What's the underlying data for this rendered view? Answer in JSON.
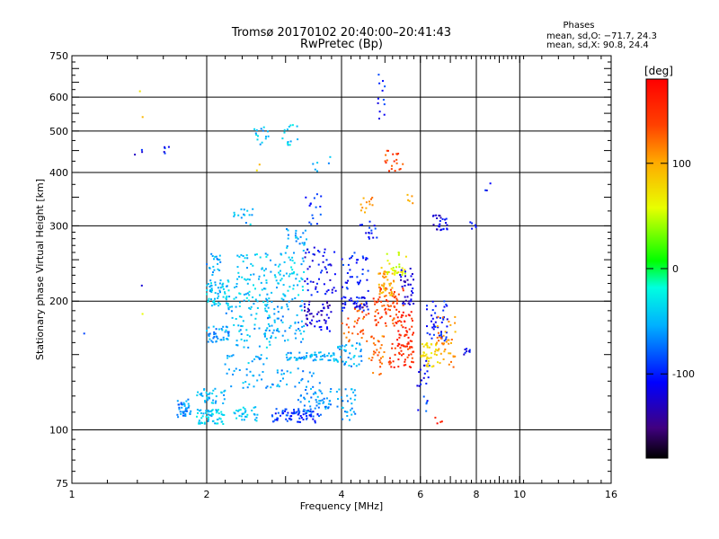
{
  "chart_data": {
    "type": "scatter",
    "title": "Tromsø 20170102 20:40:00–20:41:43",
    "subtitle": "RwPretec (Bp)",
    "xlabel": "Frequency [MHz]",
    "ylabel": "Stationary phase Virtual Height [km]",
    "xscale": "log",
    "yscale": "log",
    "xlim": [
      1,
      16
    ],
    "ylim": [
      75,
      750
    ],
    "x_ticks": [
      1,
      2,
      4,
      6,
      8,
      10,
      16
    ],
    "x_tick_labels": [
      "1",
      "2",
      "4",
      "6",
      "8",
      "10",
      "16"
    ],
    "y_ticks": [
      75,
      100,
      200,
      300,
      400,
      500,
      600,
      750
    ],
    "y_tick_labels": [
      "75",
      "100",
      "200",
      "300",
      "400",
      "500",
      "600",
      "750"
    ],
    "grid": true,
    "phase_stats": {
      "heading": "Phases",
      "line_o": "mean, sd,O: −71.7, 24.3",
      "line_x": "mean, sd,X:  90.8, 24.4"
    },
    "colorbar": {
      "label": "[deg]",
      "min": -180,
      "max": 180,
      "ticks": [
        100,
        0,
        -100
      ],
      "tick_labels": [
        "100",
        "0",
        "-100"
      ],
      "colormap": "rainbow"
    },
    "clusters": [
      {
        "fx": [
          1.05,
          1.22
        ],
        "h": [
          168,
          168
        ],
        "ph": -105,
        "n": 1
      },
      {
        "fx": [
          1.38,
          1.45
        ],
        "h": [
          440,
          460
        ],
        "ph": -110,
        "n": 3
      },
      {
        "fx": [
          1.6,
          1.65
        ],
        "h": [
          440,
          460
        ],
        "ph": -105,
        "n": 5
      },
      {
        "fx": [
          1.42,
          1.44
        ],
        "h": [
          215,
          220
        ],
        "ph": -110,
        "n": 1
      },
      {
        "fx": [
          1.42,
          1.44
        ],
        "h": [
          185,
          190
        ],
        "ph": 40,
        "n": 1
      },
      {
        "fx": [
          1.4,
          1.42
        ],
        "h": [
          610,
          620
        ],
        "ph": 90,
        "n": 1
      },
      {
        "fx": [
          1.42,
          1.44
        ],
        "h": [
          530,
          540
        ],
        "ph": 100,
        "n": 1
      },
      {
        "fx": [
          1.72,
          1.85
        ],
        "h": [
          107,
          118
        ],
        "ph": -65,
        "n": 40
      },
      {
        "fx": [
          1.9,
          2.2
        ],
        "h": [
          103,
          112
        ],
        "ph": -40,
        "n": 60
      },
      {
        "fx": [
          1.9,
          2.2
        ],
        "h": [
          115,
          125
        ],
        "ph": -50,
        "n": 35
      },
      {
        "fx": [
          2.0,
          2.25
        ],
        "h": [
          160,
          175
        ],
        "ph": -60,
        "n": 40
      },
      {
        "fx": [
          2.0,
          2.25
        ],
        "h": [
          195,
          225
        ],
        "ph": -45,
        "n": 60
      },
      {
        "fx": [
          2.0,
          2.15
        ],
        "h": [
          230,
          260
        ],
        "ph": -55,
        "n": 20
      },
      {
        "fx": [
          2.3,
          2.6
        ],
        "h": [
          105,
          115
        ],
        "ph": -45,
        "n": 30
      },
      {
        "fx": [
          2.2,
          2.8
        ],
        "h": [
          125,
          150
        ],
        "ph": -55,
        "n": 40
      },
      {
        "fx": [
          2.2,
          2.8
        ],
        "h": [
          155,
          200
        ],
        "ph": -50,
        "n": 70
      },
      {
        "fx": [
          2.3,
          2.8
        ],
        "h": [
          200,
          260
        ],
        "ph": -45,
        "n": 70
      },
      {
        "fx": [
          2.3,
          2.6
        ],
        "h": [
          300,
          330
        ],
        "ph": -50,
        "n": 15
      },
      {
        "fx": [
          2.55,
          2.75
        ],
        "h": [
          460,
          510
        ],
        "ph": -50,
        "n": 15
      },
      {
        "fx": [
          2.9,
          3.2
        ],
        "h": [
          460,
          520
        ],
        "ph": -40,
        "n": 15
      },
      {
        "fx": [
          2.8,
          3.6
        ],
        "h": [
          104,
          112
        ],
        "ph": -95,
        "n": 80
      },
      {
        "fx": [
          3.2,
          3.8
        ],
        "h": [
          110,
          125
        ],
        "ph": -60,
        "n": 50
      },
      {
        "fx": [
          2.7,
          3.6
        ],
        "h": [
          125,
          140
        ],
        "ph": -60,
        "n": 30
      },
      {
        "fx": [
          3.0,
          3.9
        ],
        "h": [
          145,
          152
        ],
        "ph": -55,
        "n": 60
      },
      {
        "fx": [
          2.7,
          3.3
        ],
        "h": [
          160,
          200
        ],
        "ph": -55,
        "n": 60
      },
      {
        "fx": [
          2.8,
          3.3
        ],
        "h": [
          200,
          260
        ],
        "ph": -45,
        "n": 60
      },
      {
        "fx": [
          3.0,
          3.4
        ],
        "h": [
          260,
          300
        ],
        "ph": -55,
        "n": 25
      },
      {
        "fx": [
          3.3,
          3.8
        ],
        "h": [
          170,
          200
        ],
        "ph": -125,
        "n": 50
      },
      {
        "fx": [
          3.3,
          3.9
        ],
        "h": [
          205,
          270
        ],
        "ph": -110,
        "n": 50
      },
      {
        "fx": [
          3.3,
          3.6
        ],
        "h": [
          300,
          360
        ],
        "ph": -90,
        "n": 15
      },
      {
        "fx": [
          3.9,
          4.3
        ],
        "h": [
          105,
          125
        ],
        "ph": -60,
        "n": 30
      },
      {
        "fx": [
          3.9,
          4.5
        ],
        "h": [
          140,
          160
        ],
        "ph": -55,
        "n": 40
      },
      {
        "fx": [
          4.0,
          4.6
        ],
        "h": [
          160,
          200
        ],
        "ph": 130,
        "n": 35
      },
      {
        "fx": [
          4.0,
          4.6
        ],
        "h": [
          190,
          205
        ],
        "ph": -110,
        "n": 40
      },
      {
        "fx": [
          4.0,
          4.6
        ],
        "h": [
          210,
          260
        ],
        "ph": -100,
        "n": 35
      },
      {
        "fx": [
          4.3,
          4.8
        ],
        "h": [
          280,
          310
        ],
        "ph": -100,
        "n": 15
      },
      {
        "fx": [
          4.6,
          5.0
        ],
        "h": [
          130,
          170
        ],
        "ph": 120,
        "n": 30
      },
      {
        "fx": [
          4.7,
          5.5
        ],
        "h": [
          175,
          215
        ],
        "ph": 140,
        "n": 70
      },
      {
        "fx": [
          4.8,
          5.3
        ],
        "h": [
          205,
          240
        ],
        "ph": 100,
        "n": 45
      },
      {
        "fx": [
          5.0,
          5.6
        ],
        "h": [
          230,
          260
        ],
        "ph": 60,
        "n": 30
      },
      {
        "fx": [
          5.1,
          5.8
        ],
        "h": [
          140,
          160
        ],
        "ph": 150,
        "n": 50
      },
      {
        "fx": [
          5.3,
          5.8
        ],
        "h": [
          160,
          190
        ],
        "ph": 160,
        "n": 35
      },
      {
        "fx": [
          5.4,
          5.8
        ],
        "h": [
          195,
          240
        ],
        "ph": -120,
        "n": 35
      },
      {
        "fx": [
          4.4,
          4.7
        ],
        "h": [
          320,
          350
        ],
        "ph": 110,
        "n": 12
      },
      {
        "fx": [
          5.0,
          5.5
        ],
        "h": [
          400,
          450
        ],
        "ph": 140,
        "n": 20
      },
      {
        "fx": [
          4.8,
          5.0
        ],
        "h": [
          520,
          680
        ],
        "ph": -100,
        "n": 12
      },
      {
        "fx": [
          5.6,
          5.8
        ],
        "h": [
          330,
          360
        ],
        "ph": 100,
        "n": 5
      },
      {
        "fx": [
          5.9,
          6.3
        ],
        "h": [
          125,
          145
        ],
        "ph": -110,
        "n": 15
      },
      {
        "fx": [
          6.0,
          6.6
        ],
        "h": [
          140,
          160
        ],
        "ph": 80,
        "n": 40
      },
      {
        "fx": [
          6.2,
          6.9
        ],
        "h": [
          160,
          200
        ],
        "ph": -105,
        "n": 45
      },
      {
        "fx": [
          6.5,
          7.2
        ],
        "h": [
          140,
          185
        ],
        "ph": 110,
        "n": 40
      },
      {
        "fx": [
          6.4,
          6.9
        ],
        "h": [
          290,
          320
        ],
        "ph": -115,
        "n": 25
      },
      {
        "fx": [
          7.5,
          7.8
        ],
        "h": [
          150,
          155
        ],
        "ph": -110,
        "n": 8
      },
      {
        "fx": [
          7.7,
          8.0
        ],
        "h": [
          295,
          310
        ],
        "ph": -100,
        "n": 5
      },
      {
        "fx": [
          8.3,
          8.6
        ],
        "h": [
          360,
          380
        ],
        "ph": -100,
        "n": 3
      },
      {
        "fx": [
          5.9,
          6.3
        ],
        "h": [
          110,
          120
        ],
        "ph": -90,
        "n": 6
      },
      {
        "fx": [
          6.4,
          6.8
        ],
        "h": [
          100,
          110
        ],
        "ph": 160,
        "n": 4
      },
      {
        "fx": [
          3.4,
          3.8
        ],
        "h": [
          400,
          440
        ],
        "ph": -50,
        "n": 6
      },
      {
        "fx": [
          2.55,
          2.7
        ],
        "h": [
          400,
          420
        ],
        "ph": 90,
        "n": 2
      }
    ]
  }
}
